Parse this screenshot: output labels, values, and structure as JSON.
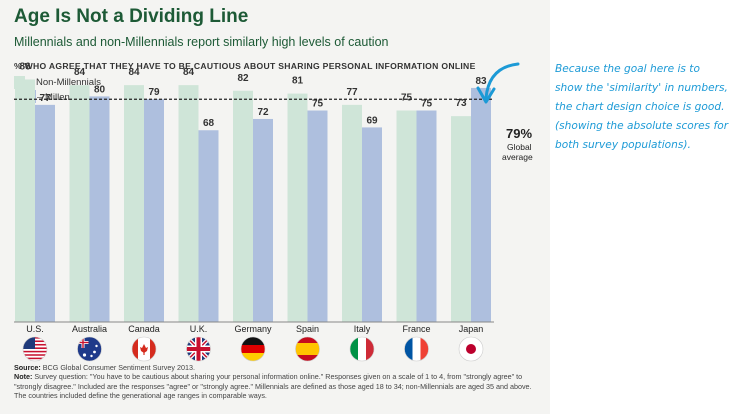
{
  "title": "Age Is Not a Dividing Line",
  "subtitle": "Millennials and non-Millennials report similarly high levels of caution",
  "axis_caption": "% WHO AGREE THAT THEY HAVE TO BE CAUTIOUS ABOUT SHARING PERSONAL INFORMATION ONLINE",
  "legend": {
    "non_millennials": "Non-Millennials",
    "millennials": "Millennials"
  },
  "colors": {
    "non_millennials": "#cfe5d8",
    "millennials": "#aebfde",
    "title": "#1d5a36",
    "annotation": "#1c9ad6"
  },
  "global_average": {
    "value_label": "79%",
    "label_line1": "Global",
    "label_line2": "average"
  },
  "chart_data": {
    "type": "bar",
    "title": "Age Is Not a Dividing Line",
    "subtitle": "Millennials and non-Millennials report similarly high levels of caution",
    "xlabel": "",
    "ylabel": "% who agree that they have to be cautious about sharing personal information online",
    "ylim": [
      0,
      100
    ],
    "grid": false,
    "legend_position": "top-left",
    "categories": [
      "U.S.",
      "Australia",
      "Canada",
      "U.K.",
      "Germany",
      "Spain",
      "Italy",
      "France",
      "Japan"
    ],
    "series": [
      {
        "name": "Non-Millennials",
        "values": [
          86,
          84,
          84,
          84,
          82,
          81,
          77,
          75,
          73
        ]
      },
      {
        "name": "Millennials",
        "values": [
          77,
          80,
          79,
          68,
          72,
          75,
          69,
          75,
          83
        ]
      }
    ],
    "reference_line": {
      "value": 79,
      "label": "79% Global average"
    }
  },
  "flags": [
    {
      "country": "U.S.",
      "icon": "us-flag-icon"
    },
    {
      "country": "Australia",
      "icon": "australia-flag-icon"
    },
    {
      "country": "Canada",
      "icon": "canada-flag-icon"
    },
    {
      "country": "U.K.",
      "icon": "uk-flag-icon"
    },
    {
      "country": "Germany",
      "icon": "germany-flag-icon"
    },
    {
      "country": "Spain",
      "icon": "spain-flag-icon"
    },
    {
      "country": "Italy",
      "icon": "italy-flag-icon"
    },
    {
      "country": "France",
      "icon": "france-flag-icon"
    },
    {
      "country": "Japan",
      "icon": "japan-flag-icon"
    }
  ],
  "footnote": {
    "source_label": "Source:",
    "source_text": "BCG Global Consumer Sentiment Survey 2013.",
    "note_label": "Note:",
    "note_text": "Survey question: \"You have to be cautious about sharing your personal information online.\" Responses given on a scale of 1 to 4, from \"strongly agree\" to \"strongly disagree.\" Included are the responses \"agree\" or \"strongly agree.\" Millennials are defined as those aged 18 to 34; non-Millennials are aged 35 and above. The countries included define the generational age ranges in comparable ways."
  },
  "annotation": {
    "text": "Because the goal here is to show the 'similarity' in numbers, the chart design choice is good. (showing the absolute scores for both survey populations)."
  }
}
